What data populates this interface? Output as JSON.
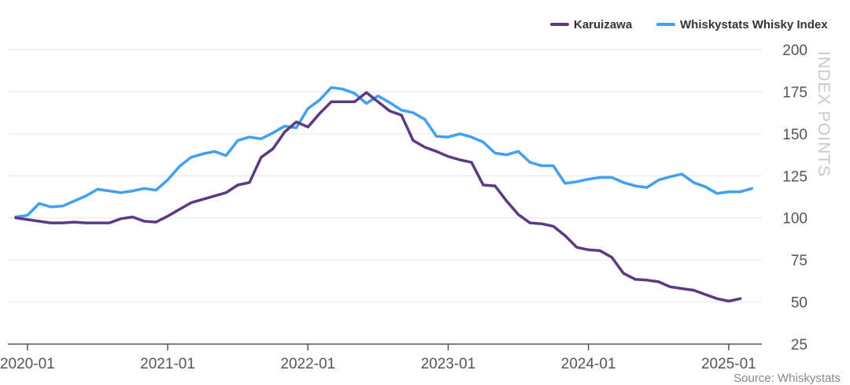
{
  "chart_data": {
    "type": "line",
    "x_start": "2019-12",
    "x_tick_labels": [
      "2020-01",
      "2021-01",
      "2022-01",
      "2023-01",
      "2024-01",
      "2025-01"
    ],
    "y_tick_labels": [
      "25",
      "50",
      "75",
      "100",
      "125",
      "150",
      "175",
      "200"
    ],
    "ylim": [
      25,
      200
    ],
    "ylabel": "INDEX POINTS",
    "xlabel": "",
    "grid": true,
    "legend_position": "top-right",
    "series": [
      {
        "name": "Karuizawa",
        "color": "#5b3a82",
        "values": [
          100,
          99,
          98,
          97,
          97,
          97.5,
          97,
          97,
          97,
          99.5,
          100.5,
          98,
          97.5,
          101,
          105,
          109,
          111,
          113,
          115,
          119.5,
          121,
          136,
          141,
          151,
          157,
          154,
          162,
          169,
          169,
          169,
          174.5,
          169,
          163.5,
          161,
          146,
          142,
          139.5,
          136.5,
          134.5,
          133,
          119.5,
          119,
          110,
          102,
          97,
          96.5,
          95,
          89.5,
          82.5,
          81,
          80.5,
          76.5,
          67,
          63.5,
          63,
          62,
          59,
          58,
          57,
          54.5,
          52,
          50.5,
          52
        ]
      },
      {
        "name": "Whiskystats Whisky Index",
        "color": "#42a0f2",
        "values": [
          100.5,
          101.5,
          108.5,
          106.5,
          107,
          110,
          113,
          117,
          116,
          115,
          116,
          117.5,
          116.5,
          122.5,
          130.5,
          136,
          138,
          139.5,
          137,
          146,
          148,
          147,
          150.5,
          154.5,
          153.5,
          165,
          170,
          177.5,
          176.5,
          174,
          168,
          172.5,
          168.5,
          164,
          162.5,
          158.5,
          148.5,
          148,
          150,
          148,
          145,
          138.5,
          137.5,
          139.5,
          133,
          131,
          131,
          120.5,
          121.5,
          123,
          124,
          124,
          121,
          119,
          118,
          122.5,
          124.5,
          126,
          121,
          118.5,
          114.5,
          115.5,
          115.5,
          117.5
        ]
      }
    ]
  },
  "source": "Source: Whiskystats"
}
